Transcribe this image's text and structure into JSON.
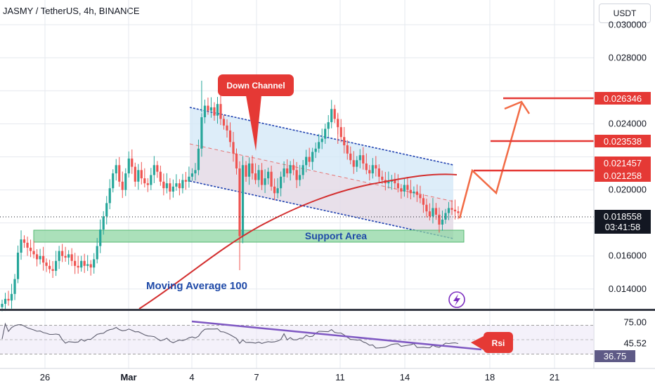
{
  "header": {
    "title": "JASMY / TetherUS, 4h, BINANCE",
    "currency_button": "USDT"
  },
  "colors": {
    "up": "#26a69a",
    "down": "#ef5350",
    "ma": "#d32f2f",
    "channel": "#1e40af",
    "support_fill": "#8fd6a3",
    "arrow": "#f26b45",
    "rsi": "#5d5d6e",
    "label_red": "#e53935"
  },
  "chart_data": [
    {
      "type": "candlestick",
      "title": "JASMY / TetherUS, 4h, BINANCE",
      "x_ticks": [
        "26",
        "Mar",
        "4",
        "7",
        "11",
        "14",
        "18",
        "21"
      ],
      "y_ticks": [
        "0.030000",
        "0.028000",
        "0.024000",
        "0.020000",
        "0.016000",
        "0.014000"
      ],
      "ylim": [
        0.0128,
        0.0315
      ],
      "grid": true,
      "price_levels": [
        {
          "label": "0.026346",
          "value": 0.026346,
          "role": "target"
        },
        {
          "label": "0.023538",
          "value": 0.023538,
          "role": "target"
        },
        {
          "label": "0.021457",
          "value": 0.021457,
          "role": "target"
        },
        {
          "label": "0.021258",
          "value": 0.021258,
          "role": "moving-average"
        },
        {
          "label": "0.018558",
          "value": 0.018558,
          "role": "last-price"
        }
      ],
      "last_price": "0.018558",
      "countdown": "03:41:58",
      "annotations": {
        "down_channel": "Down Channel",
        "support_area": "Support Area",
        "moving_average": "Moving Average 100"
      },
      "closes": [
        0.0131,
        0.0134,
        0.0133,
        0.0137,
        0.0146,
        0.0162,
        0.017,
        0.0168,
        0.0165,
        0.0163,
        0.0161,
        0.0158,
        0.016,
        0.0156,
        0.0154,
        0.0152,
        0.0151,
        0.0157,
        0.0163,
        0.016,
        0.0159,
        0.0161,
        0.0157,
        0.0154,
        0.0153,
        0.0157,
        0.0154,
        0.0155,
        0.0153,
        0.0158,
        0.0166,
        0.0176,
        0.0184,
        0.0192,
        0.0201,
        0.021,
        0.0215,
        0.0205,
        0.02,
        0.021,
        0.0219,
        0.0214,
        0.0205,
        0.0212,
        0.0207,
        0.0204,
        0.0203,
        0.0209,
        0.0215,
        0.0211,
        0.0205,
        0.0201,
        0.0204,
        0.0199,
        0.0202,
        0.0204,
        0.0201,
        0.0206,
        0.0205,
        0.0208,
        0.021,
        0.0212,
        0.0225,
        0.0244,
        0.0251,
        0.0248,
        0.025,
        0.0245,
        0.0252,
        0.0243,
        0.0239,
        0.0236,
        0.0229,
        0.0222,
        0.0213,
        0.0172,
        0.0215,
        0.0208,
        0.0216,
        0.021,
        0.0206,
        0.0212,
        0.0203,
        0.0207,
        0.0211,
        0.0202,
        0.0198,
        0.0201,
        0.0208,
        0.0213,
        0.021,
        0.0215,
        0.0212,
        0.0206,
        0.0209,
        0.0215,
        0.022,
        0.0217,
        0.0223,
        0.0225,
        0.0229,
        0.0231,
        0.0237,
        0.0241,
        0.0249,
        0.0243,
        0.0238,
        0.0232,
        0.0227,
        0.0222,
        0.0218,
        0.0214,
        0.0218,
        0.0221,
        0.0216,
        0.0212,
        0.021,
        0.0215,
        0.0213,
        0.0208,
        0.0206,
        0.0204,
        0.0205,
        0.0206,
        0.0204,
        0.0201,
        0.0199,
        0.0203,
        0.02,
        0.0198,
        0.0199,
        0.0197,
        0.0195,
        0.0191,
        0.0187,
        0.0184,
        0.0189,
        0.0185,
        0.0179,
        0.0182,
        0.0186,
        0.0189,
        0.0188,
        0.0187,
        0.0186
      ],
      "rsi": {
        "y_ticks": [
          "75.00",
          "45.52"
        ],
        "value": "36.75",
        "label": "Rsi",
        "ylim": [
          10,
          90
        ]
      }
    }
  ]
}
